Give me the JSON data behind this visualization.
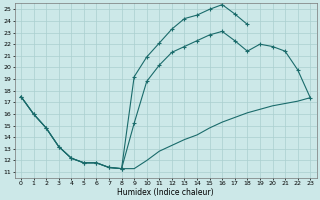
{
  "xlabel": "Humidex (Indice chaleur)",
  "background_color": "#cce8e8",
  "grid_color": "#aacfcf",
  "line_color": "#1a6b6b",
  "xlim": [
    -0.5,
    23.5
  ],
  "ylim": [
    10.5,
    25.5
  ],
  "xticks": [
    0,
    1,
    2,
    3,
    4,
    5,
    6,
    7,
    8,
    9,
    10,
    11,
    12,
    13,
    14,
    15,
    16,
    17,
    18,
    19,
    20,
    21,
    22,
    23
  ],
  "yticks": [
    11,
    12,
    13,
    14,
    15,
    16,
    17,
    18,
    19,
    20,
    21,
    22,
    23,
    24,
    25
  ],
  "curve_upper_x": [
    0,
    1,
    2,
    3,
    4,
    5,
    6,
    7,
    8,
    9,
    10,
    11,
    12,
    13,
    14,
    15,
    16,
    17,
    18
  ],
  "curve_upper_y": [
    17.5,
    16.0,
    14.8,
    13.2,
    12.2,
    11.8,
    11.8,
    11.4,
    11.3,
    19.2,
    20.9,
    22.1,
    23.3,
    24.2,
    24.5,
    25.0,
    25.4,
    24.6,
    23.7
  ],
  "curve_mid_x": [
    0,
    1,
    2,
    3,
    4,
    5,
    6,
    7,
    8,
    9,
    10,
    11,
    12,
    13,
    14,
    15,
    16,
    17,
    18,
    19,
    20,
    21,
    22,
    23
  ],
  "curve_mid_y": [
    17.5,
    16.0,
    14.8,
    13.2,
    12.2,
    11.8,
    11.8,
    11.4,
    11.3,
    15.2,
    18.8,
    20.2,
    21.3,
    21.8,
    22.3,
    22.8,
    23.1,
    22.3,
    21.4,
    22.0,
    21.8,
    21.4,
    19.8,
    17.4
  ],
  "curve_lower_x": [
    0,
    1,
    2,
    3,
    4,
    5,
    6,
    7,
    8,
    9,
    10,
    11,
    12,
    13,
    14,
    15,
    16,
    17,
    18,
    19,
    20,
    21,
    22,
    23
  ],
  "curve_lower_y": [
    17.5,
    16.0,
    14.8,
    13.2,
    12.2,
    11.8,
    11.8,
    11.4,
    11.3,
    11.3,
    12.0,
    12.8,
    13.3,
    13.8,
    14.2,
    14.8,
    15.3,
    15.7,
    16.1,
    16.4,
    16.7,
    16.9,
    17.1,
    17.4
  ]
}
